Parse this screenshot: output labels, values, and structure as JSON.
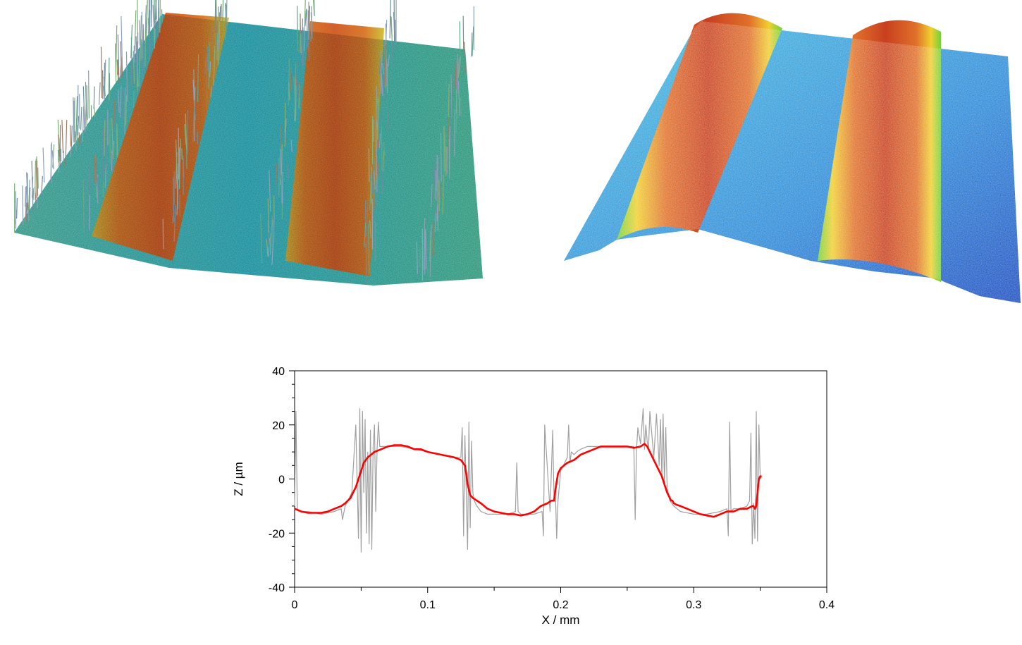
{
  "figure": {
    "panels": [
      {
        "type": "3d-surface",
        "description_colormap": "jet",
        "variant": "raw"
      },
      {
        "type": "3d-surface",
        "description_colormap": "jet",
        "variant": "filtered"
      }
    ]
  },
  "chart_data": {
    "type": "line",
    "title": "",
    "xlabel": "X / mm",
    "ylabel": "Z / µm",
    "xlim": [
      0,
      0.4
    ],
    "ylim": [
      -40,
      40
    ],
    "x_ticks": [
      "0",
      "0.1",
      "0.2",
      "0.3",
      "0.4"
    ],
    "y_ticks": [
      "-40",
      "-20",
      "0",
      "20",
      "40"
    ],
    "grid": false,
    "legend": "none",
    "series": [
      {
        "color": "#a0a0a0",
        "x": [
          0.0,
          0.001,
          0.002,
          0.004,
          0.01,
          0.02,
          0.03,
          0.035,
          0.036,
          0.038,
          0.04,
          0.043,
          0.046,
          0.048,
          0.049,
          0.05,
          0.051,
          0.052,
          0.053,
          0.054,
          0.055,
          0.056,
          0.057,
          0.058,
          0.059,
          0.06,
          0.061,
          0.062,
          0.063,
          0.064,
          0.065,
          0.07,
          0.08,
          0.09,
          0.1,
          0.11,
          0.12,
          0.125,
          0.126,
          0.127,
          0.128,
          0.13,
          0.131,
          0.132,
          0.133,
          0.134,
          0.135,
          0.137,
          0.14,
          0.145,
          0.15,
          0.16,
          0.166,
          0.167,
          0.168,
          0.17,
          0.18,
          0.186,
          0.187,
          0.188,
          0.192,
          0.194,
          0.195,
          0.196,
          0.197,
          0.198,
          0.2,
          0.205,
          0.206,
          0.207,
          0.208,
          0.21,
          0.212,
          0.215,
          0.22,
          0.23,
          0.24,
          0.25,
          0.255,
          0.256,
          0.257,
          0.258,
          0.26,
          0.262,
          0.263,
          0.264,
          0.265,
          0.266,
          0.267,
          0.27,
          0.272,
          0.274,
          0.275,
          0.276,
          0.277,
          0.278,
          0.279,
          0.28,
          0.282,
          0.285,
          0.29,
          0.3,
          0.31,
          0.32,
          0.325,
          0.326,
          0.327,
          0.328,
          0.33,
          0.335,
          0.34,
          0.342,
          0.343,
          0.344,
          0.345,
          0.346,
          0.347,
          0.348,
          0.349,
          0.35,
          0.351
        ],
        "y": [
          -10,
          25,
          -11,
          -12,
          -12,
          -13,
          -12,
          -11,
          -15,
          -10,
          -8,
          -5,
          20,
          -22,
          26,
          -27,
          25,
          -5,
          22,
          -20,
          10,
          -24,
          18,
          -26,
          12,
          20,
          -12,
          11,
          21,
          12,
          12,
          12,
          12,
          11,
          10,
          9,
          8,
          8,
          19,
          -21,
          16,
          -26,
          21,
          -18,
          14,
          -5,
          -8,
          -10,
          -12,
          -13,
          -13,
          -13,
          -12,
          6,
          -12,
          -13,
          -13,
          -12,
          -21,
          20,
          -12,
          18,
          -8,
          -5,
          -22,
          -8,
          3,
          8,
          20,
          6,
          10,
          9,
          10,
          11,
          12,
          12,
          12,
          12,
          12,
          -15,
          11,
          19,
          13,
          26,
          11,
          20,
          14,
          11,
          25,
          8,
          24,
          5,
          22,
          0,
          24,
          -2,
          19,
          -3,
          -8,
          -10,
          -12,
          -13,
          -13,
          -12,
          -11,
          -21,
          21,
          -12,
          -11,
          -11,
          -10,
          -8,
          17,
          -24,
          -9,
          -22,
          25,
          -23,
          20,
          0,
          1
        ],
        "name": ""
      },
      {
        "color": "#ff0000",
        "x": [
          0.0,
          0.005,
          0.01,
          0.015,
          0.02,
          0.025,
          0.03,
          0.035,
          0.038,
          0.04,
          0.042,
          0.044,
          0.046,
          0.048,
          0.05,
          0.052,
          0.055,
          0.06,
          0.065,
          0.07,
          0.075,
          0.08,
          0.085,
          0.09,
          0.095,
          0.1,
          0.105,
          0.11,
          0.115,
          0.12,
          0.125,
          0.128,
          0.129,
          0.13,
          0.131,
          0.132,
          0.134,
          0.137,
          0.14,
          0.145,
          0.15,
          0.155,
          0.16,
          0.165,
          0.17,
          0.175,
          0.18,
          0.185,
          0.19,
          0.193,
          0.195,
          0.196,
          0.197,
          0.198,
          0.2,
          0.205,
          0.21,
          0.215,
          0.22,
          0.225,
          0.23,
          0.235,
          0.24,
          0.245,
          0.25,
          0.255,
          0.26,
          0.263,
          0.265,
          0.268,
          0.27,
          0.272,
          0.274,
          0.276,
          0.278,
          0.28,
          0.281,
          0.282,
          0.283,
          0.284,
          0.285,
          0.287,
          0.29,
          0.295,
          0.3,
          0.305,
          0.31,
          0.315,
          0.32,
          0.325,
          0.33,
          0.335,
          0.34,
          0.344,
          0.345,
          0.346,
          0.347,
          0.348,
          0.349,
          0.35,
          0.351
        ],
        "y": [
          -11,
          -12,
          -12.5,
          -12.5,
          -12.5,
          -12,
          -11,
          -10,
          -9,
          -8,
          -7,
          -5,
          -3,
          0,
          3,
          6,
          8,
          10,
          11,
          12,
          12.5,
          12.5,
          12,
          11,
          11,
          10,
          9.5,
          9,
          8.5,
          8,
          7,
          5,
          2,
          -2,
          -4,
          -6,
          -7,
          -8,
          -9,
          -11,
          -12,
          -12.5,
          -13,
          -13,
          -13.5,
          -13,
          -12,
          -10,
          -9,
          -8,
          -8,
          -4,
          -1,
          2,
          4,
          6,
          7,
          9,
          10,
          11,
          12,
          12,
          12,
          12,
          12,
          11.5,
          12,
          13,
          12,
          9,
          7,
          5,
          3,
          1,
          -2,
          -5,
          -6,
          -7,
          -8,
          -8,
          -9,
          -9.5,
          -10,
          -11,
          -12,
          -13,
          -13.5,
          -14,
          -13,
          -12,
          -12,
          -11,
          -11,
          -10,
          -10,
          -11,
          -10,
          -5,
          0,
          1,
          1
        ],
        "name": ""
      }
    ]
  },
  "colors": {
    "raw_line": "#a0a0a0",
    "smooth_line": "#ff0000",
    "axis": "#000000"
  }
}
